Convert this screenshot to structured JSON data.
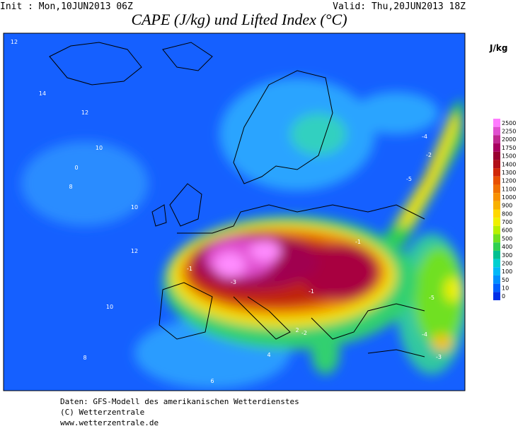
{
  "header": {
    "init": "Init : Mon,10JUN2013 06Z",
    "valid": "Valid: Thu,20JUN2013 18Z",
    "title": "CAPE (J/kg) und Lifted Index (°C)"
  },
  "colorbar": {
    "unit": "J/kg",
    "levels": [
      2500,
      2250,
      2000,
      1750,
      1500,
      1400,
      1300,
      1200,
      1100,
      1000,
      900,
      800,
      700,
      600,
      500,
      400,
      300,
      200,
      100,
      50,
      10,
      0
    ],
    "colors": [
      "#ff7cff",
      "#e050d0",
      "#c02890",
      "#a80060",
      "#980030",
      "#b01018",
      "#d02808",
      "#e85000",
      "#f07000",
      "#f89000",
      "#f8b000",
      "#ffd800",
      "#f0f000",
      "#b8f000",
      "#70e020",
      "#30d050",
      "#00c090",
      "#00d0d0",
      "#00b8f8",
      "#0090ff",
      "#0060ff",
      "#0030e8"
    ]
  },
  "contour_labels": [
    "12",
    "14",
    "12",
    "10",
    "8",
    "10",
    "12",
    "10",
    "8",
    "6",
    "4",
    "2",
    "0",
    "-1",
    "-3",
    "-5",
    "-2",
    "-4",
    "-3",
    "-1",
    "-5",
    "-4",
    "-2",
    "-1"
  ],
  "footer": {
    "line1": "Daten: GFS-Modell des amerikanischen Wetterdienstes",
    "line2": "(C) Wetterzentrale",
    "line3": "www.wetterzentrale.de"
  }
}
